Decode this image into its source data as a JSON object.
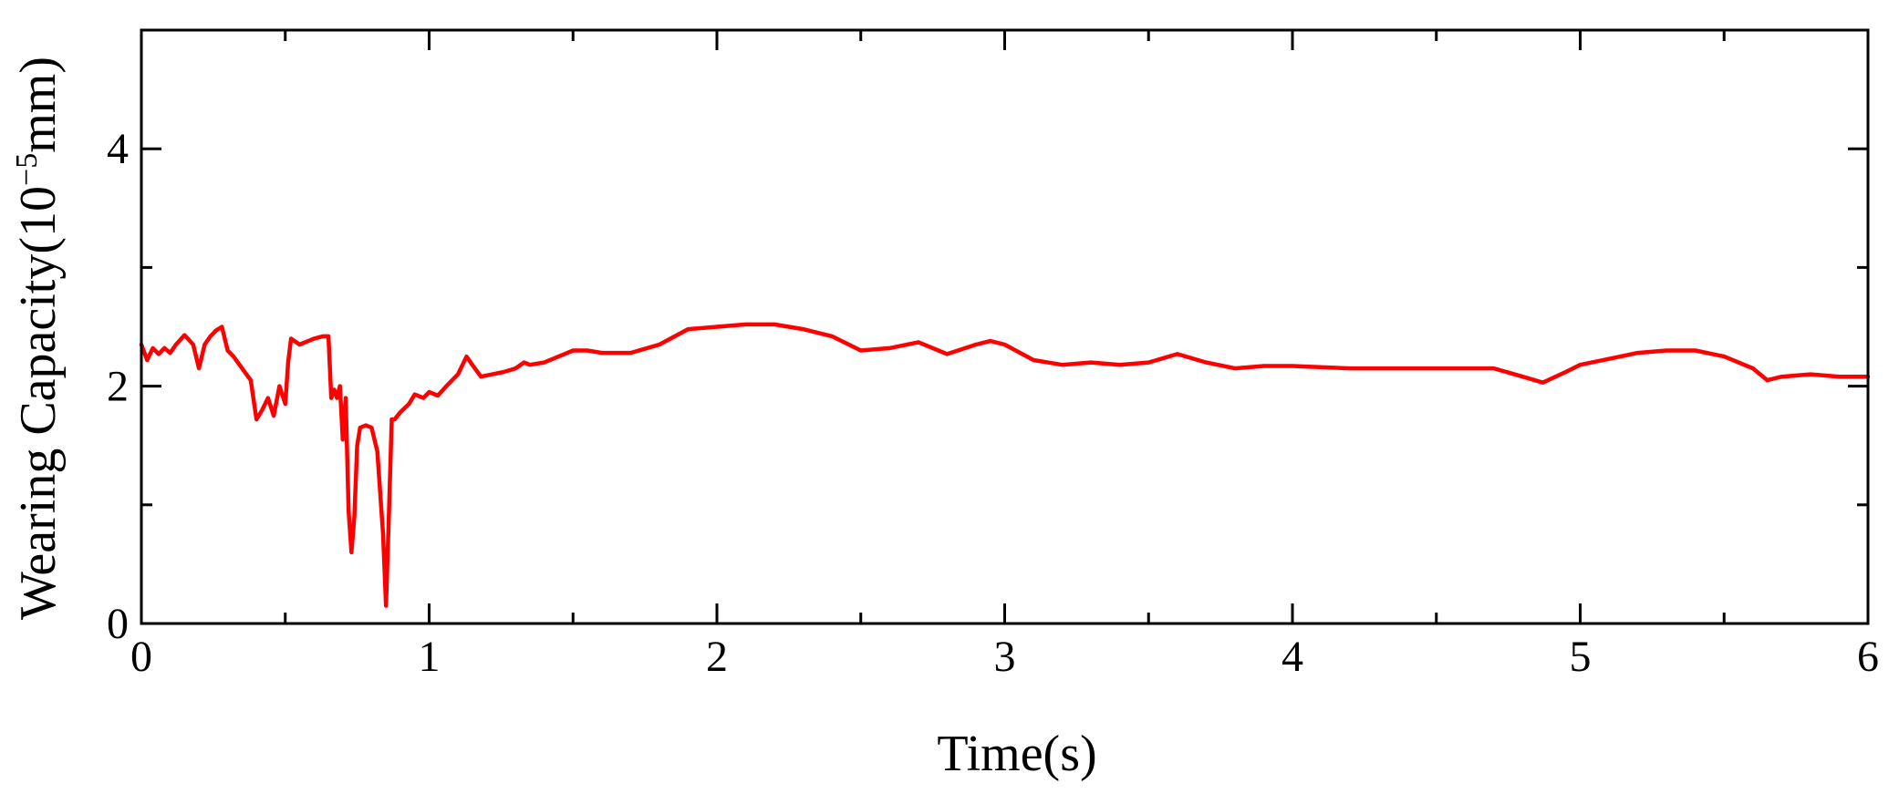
{
  "chart_data": {
    "type": "line",
    "xlabel": "Time(s)",
    "ylabel_main": "Wearing Capacity(10",
    "ylabel_exp": "−5",
    "ylabel_unit": "mm)",
    "xlim": [
      0,
      6
    ],
    "ylim": [
      0,
      5
    ],
    "x_ticks": [
      0,
      1,
      2,
      3,
      4,
      5,
      6
    ],
    "x_tick_labels": [
      "0",
      "1",
      "2",
      "3",
      "4",
      "5",
      "6"
    ],
    "x_minor_ticks": [
      0.5,
      1.5,
      2.5,
      3.5,
      4.5,
      5.5
    ],
    "y_ticks": [
      0,
      2,
      4
    ],
    "y_tick_labels": [
      "0",
      "2",
      "4"
    ],
    "y_minor_ticks": [
      1,
      3
    ],
    "grid": false,
    "line_color": "#ff0000",
    "series": [
      {
        "x": [
          0,
          0.02,
          0.04,
          0.06,
          0.08,
          0.1,
          0.12,
          0.15,
          0.18,
          0.2,
          0.22,
          0.24,
          0.26,
          0.28,
          0.3,
          0.32,
          0.35,
          0.38,
          0.4,
          0.42,
          0.44,
          0.46,
          0.48,
          0.5,
          0.51,
          0.52,
          0.55,
          0.58,
          0.6,
          0.63,
          0.65,
          0.66,
          0.67,
          0.68,
          0.69,
          0.7,
          0.71,
          0.72,
          0.73,
          0.74,
          0.75,
          0.76,
          0.78,
          0.8,
          0.82,
          0.84,
          0.85,
          0.86,
          0.87,
          0.88,
          0.9,
          0.93,
          0.95,
          0.98,
          1.0,
          1.03,
          1.06,
          1.1,
          1.13,
          1.15,
          1.18,
          1.22,
          1.26,
          1.3,
          1.33,
          1.35,
          1.4,
          1.45,
          1.5,
          1.55,
          1.6,
          1.7,
          1.8,
          1.9,
          2.0,
          2.1,
          2.2,
          2.3,
          2.4,
          2.5,
          2.6,
          2.7,
          2.8,
          2.9,
          2.95,
          3.0,
          3.1,
          3.2,
          3.3,
          3.4,
          3.5,
          3.6,
          3.7,
          3.8,
          3.9,
          4.0,
          4.2,
          4.4,
          4.6,
          4.7,
          4.8,
          4.87,
          4.95,
          5.0,
          5.1,
          5.2,
          5.3,
          5.4,
          5.5,
          5.6,
          5.65,
          5.7,
          5.8,
          5.9,
          6.0
        ],
        "y": [
          2.35,
          2.22,
          2.32,
          2.27,
          2.32,
          2.28,
          2.35,
          2.43,
          2.35,
          2.15,
          2.35,
          2.42,
          2.47,
          2.5,
          2.3,
          2.25,
          2.15,
          2.05,
          1.72,
          1.8,
          1.9,
          1.75,
          2.0,
          1.85,
          2.2,
          2.4,
          2.35,
          2.38,
          2.4,
          2.42,
          2.42,
          1.9,
          1.97,
          1.9,
          2.0,
          1.55,
          1.9,
          0.95,
          0.6,
          0.9,
          1.5,
          1.65,
          1.67,
          1.65,
          1.45,
          0.75,
          0.15,
          0.9,
          1.72,
          1.72,
          1.78,
          1.85,
          1.93,
          1.9,
          1.95,
          1.92,
          2.0,
          2.1,
          2.25,
          2.18,
          2.08,
          2.1,
          2.12,
          2.15,
          2.2,
          2.18,
          2.2,
          2.25,
          2.3,
          2.3,
          2.28,
          2.28,
          2.35,
          2.48,
          2.5,
          2.52,
          2.52,
          2.48,
          2.42,
          2.3,
          2.32,
          2.37,
          2.27,
          2.35,
          2.38,
          2.35,
          2.22,
          2.18,
          2.2,
          2.18,
          2.2,
          2.27,
          2.2,
          2.15,
          2.17,
          2.17,
          2.15,
          2.15,
          2.15,
          2.15,
          2.08,
          2.03,
          2.12,
          2.18,
          2.23,
          2.28,
          2.3,
          2.3,
          2.25,
          2.15,
          2.05,
          2.08,
          2.1,
          2.08,
          2.08
        ]
      }
    ]
  }
}
